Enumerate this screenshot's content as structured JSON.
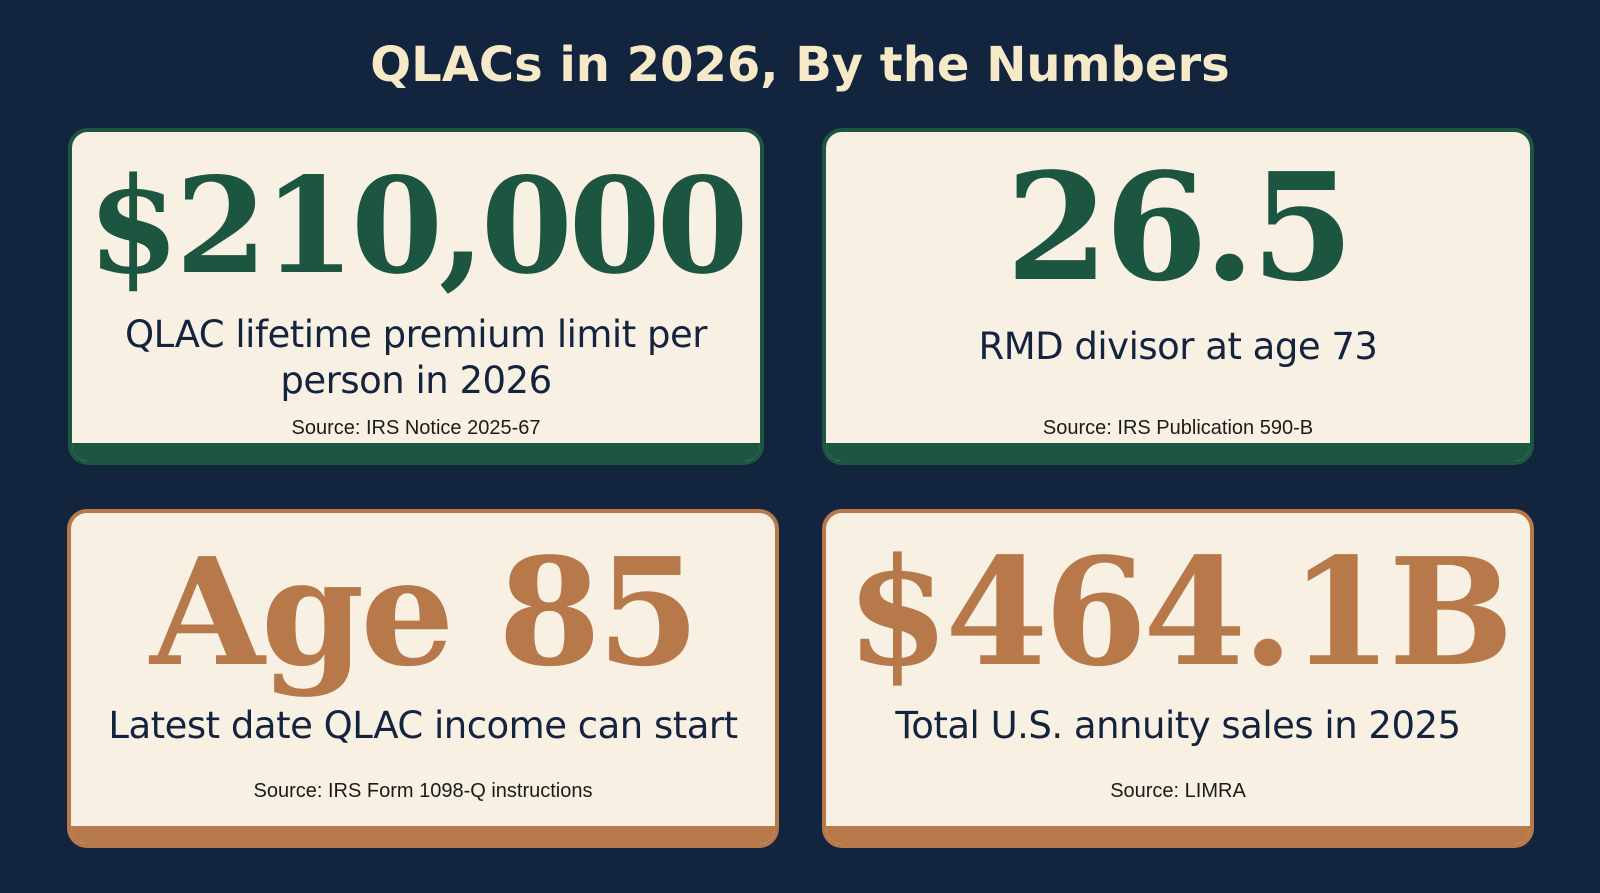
{
  "title": "QLACs in 2026, By the Numbers",
  "colors": {
    "background": "#13243f",
    "title": "#f6e9c8",
    "card_background": "#f7f0e3",
    "green_accent": "#1c5540",
    "copper_accent": "#b7784a",
    "label_text": "#14233e"
  },
  "cards": [
    {
      "value": "$210,000",
      "label": "QLAC lifetime premium limit per person in 2026",
      "source": "Source: IRS Notice 2025-67",
      "accent": "green"
    },
    {
      "value": "26.5",
      "label": "RMD divisor at age 73",
      "source": "Source: IRS Publication 590-B",
      "accent": "green"
    },
    {
      "value": "Age 85",
      "label": "Latest date QLAC income can start",
      "source": "Source: IRS Form 1098-Q instructions",
      "accent": "copper"
    },
    {
      "value": "$464.1B",
      "label": "Total U.S. annuity sales in 2025",
      "source": "Source: LIMRA",
      "accent": "copper"
    }
  ]
}
